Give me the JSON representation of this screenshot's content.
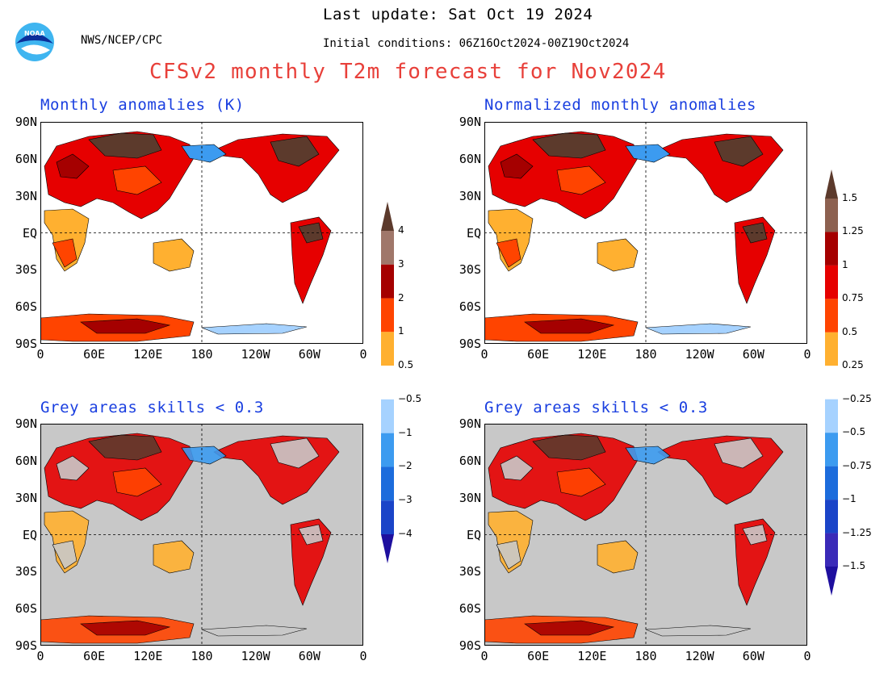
{
  "header": {
    "last_update": "Last update: Sat Oct 19 2024",
    "agency": "NWS/NCEP/CPC",
    "initial_conditions": "Initial conditions: 06Z16Oct2024-00Z19Oct2024",
    "title": "CFSv2 monthly T2m forecast for Nov2024"
  },
  "logo": {
    "text": "NOAA",
    "icon": "noaa-logo-icon"
  },
  "axes": {
    "lat_labels": [
      "90N",
      "60N",
      "30N",
      "EQ",
      "30S",
      "60S",
      "90S"
    ],
    "lon_labels": [
      "0",
      "60E",
      "120E",
      "180",
      "120W",
      "60W",
      "0"
    ]
  },
  "panels": [
    {
      "id": "anom",
      "title": "Monthly anomalies (K)",
      "masked": false
    },
    {
      "id": "norm",
      "title": "Normalized monthly anomalies",
      "masked": false
    },
    {
      "id": "anom-skill",
      "title": "Grey areas skills < 0.3",
      "masked": true
    },
    {
      "id": "norm-skill",
      "title": "Grey areas skills < 0.3",
      "masked": true
    }
  ],
  "colorbars": [
    {
      "id": "anomaly-colorbar",
      "labels": [
        "4",
        "3",
        "2",
        "1",
        "0.5",
        "−0.5",
        "−1",
        "−2",
        "−3",
        "−4"
      ]
    },
    {
      "id": "normalized-colorbar",
      "labels": [
        "1.5",
        "1.25",
        "1",
        "0.75",
        "0.5",
        "0.25",
        "−0.25",
        "−0.5",
        "−0.75",
        "−1",
        "−1.25",
        "−1.5"
      ]
    }
  ],
  "colors": {
    "warm_top": "#5c3a2c",
    "warm": [
      "#8d6150",
      "#a0776a",
      "#a50000",
      "#e60000",
      "#ff4400",
      "#ffb030"
    ],
    "neutral": "#ffffff",
    "cool": [
      "#a6d2ff",
      "#3c9bf0",
      "#1c6cdc",
      "#1a44c8",
      "#3a2ab8"
    ],
    "cool_bottom": "#1e0f9e",
    "skill_mask": "#c8c8c8",
    "title": "#e8403a",
    "panel_title": "#1a3fe0"
  }
}
